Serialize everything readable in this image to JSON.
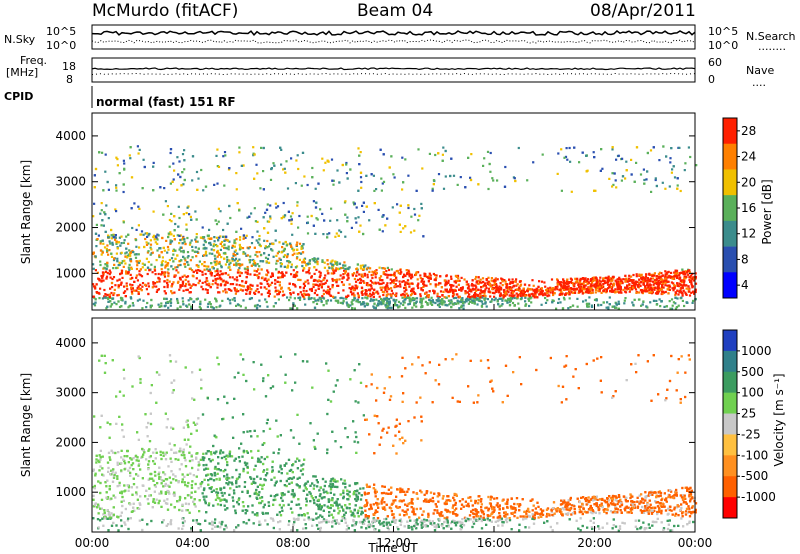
{
  "header": {
    "station": "McMurdo (fitACF)",
    "beam": "Beam 04",
    "date": "08/Apr/2011"
  },
  "top_panels": {
    "nsky_label": "N.Sky",
    "nsky_ticks": [
      "10^5",
      "10^0"
    ],
    "nsearch_label": "N.Search",
    "nsearch_ticks": [
      "10^5",
      "10^0"
    ],
    "freq_label_1": "Freq.",
    "freq_label_2": "[MHz]",
    "freq_ticks": [
      "18",
      "8"
    ],
    "nave_label": "Nave",
    "nave_ticks": [
      "60",
      "0"
    ],
    "cpid_label": "CPID",
    "cpid_value": "normal (fast) 151 RF",
    "legend_dots": "........",
    "legend_dots_nave": "...."
  },
  "chart_data": [
    {
      "type": "heatmap",
      "name": "power",
      "ylabel": "Slant Range [km]",
      "ylim": [
        200,
        4500
      ],
      "y_ticks": [
        "1000",
        "2000",
        "3000",
        "4000"
      ],
      "colorbar_label": "Power [dB]",
      "colorbar_ticks": [
        "4",
        "8",
        "12",
        "16",
        "20",
        "24",
        "28"
      ],
      "colors": [
        "#0000ff",
        "#2a4fb0",
        "#3b8c8c",
        "#5ab05a",
        "#f0c000",
        "#ff8000",
        "#ff2000"
      ],
      "grid": false
    },
    {
      "type": "heatmap",
      "name": "velocity",
      "ylabel": "Slant Range [km]",
      "ylim": [
        200,
        4500
      ],
      "y_ticks": [
        "1000",
        "2000",
        "3000",
        "4000"
      ],
      "colorbar_label": "Velocity [m s⁻¹]",
      "colorbar_ticks": [
        "1000",
        "500",
        "100",
        "25",
        "-25",
        "-100",
        "-500",
        "-1000"
      ],
      "colors": [
        "#2040c0",
        "#30808a",
        "#3c9c60",
        "#70d050",
        "#c8c8c8",
        "#ffc040",
        "#ff9020",
        "#ff6000",
        "#ff0000"
      ],
      "grid": false
    }
  ],
  "time_axis": {
    "label": "Time UT",
    "ticks": [
      "00:00",
      "04:00",
      "08:00",
      "12:00",
      "16:00",
      "20:00",
      "00:00"
    ]
  }
}
